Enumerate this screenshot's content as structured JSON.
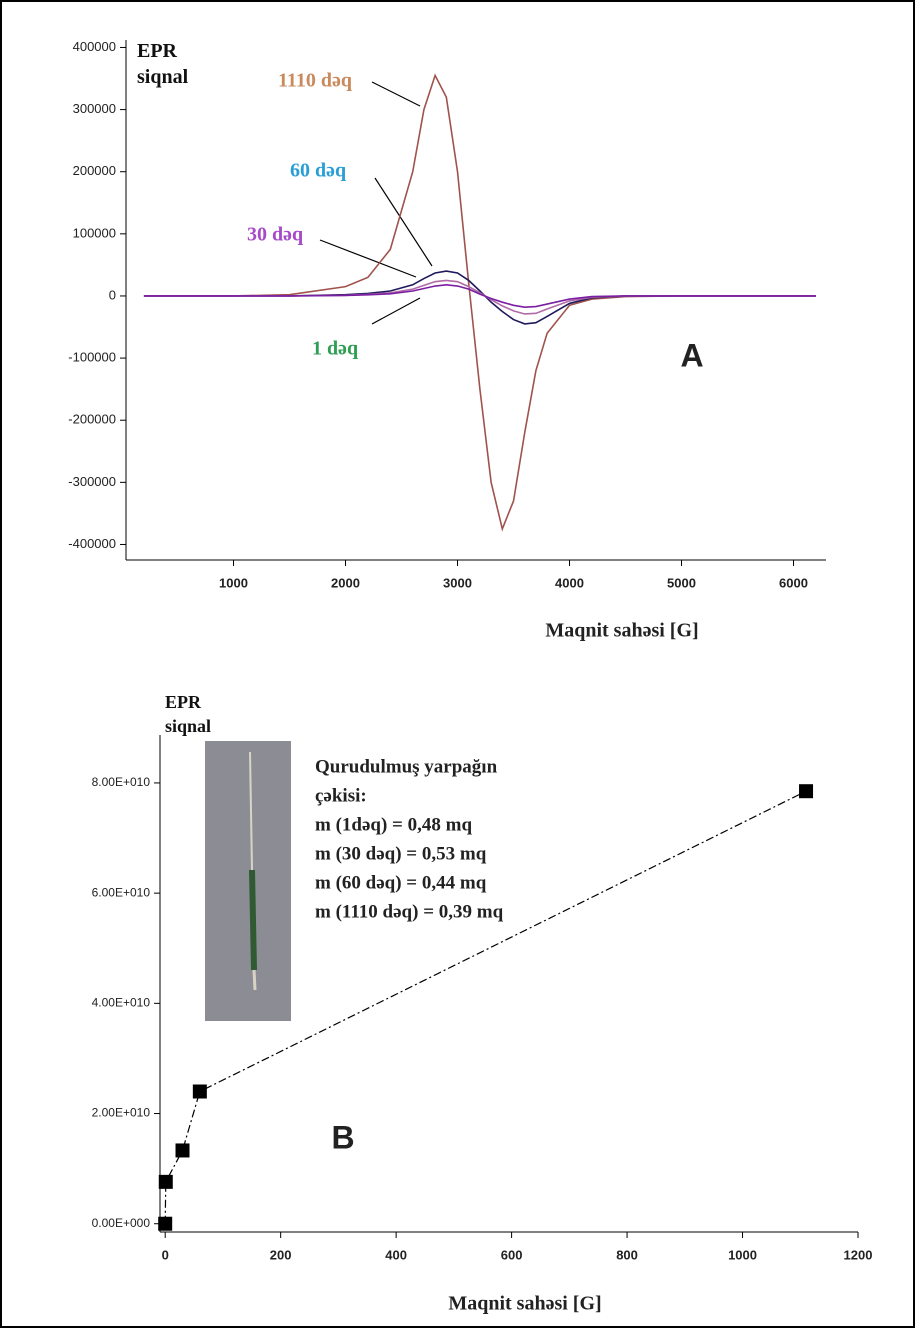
{
  "chart_data": [
    {
      "type": "line",
      "y_label": "EPR siqnal",
      "x_label": "Maqnit sahəsi [G]",
      "annotations": [
        "A"
      ],
      "x": [
        200,
        1000,
        1500,
        2000,
        2200,
        2400,
        2600,
        2700,
        2800,
        2900,
        3000,
        3100,
        3200,
        3300,
        3400,
        3500,
        3600,
        3700,
        3800,
        4000,
        4200,
        4500,
        5000,
        6200
      ],
      "series": [
        {
          "name": "1110 dəq",
          "color": "#a0524d",
          "label_color": "#c98a5e",
          "values": [
            0,
            0,
            2000,
            15000,
            30000,
            75000,
            200000,
            300000,
            355000,
            320000,
            200000,
            20000,
            -150000,
            -300000,
            -375000,
            -330000,
            -220000,
            -120000,
            -60000,
            -15000,
            -5000,
            -1000,
            0,
            0
          ]
        },
        {
          "name": "60 dəq",
          "color": "#1f1a5c",
          "label_color": "#2a9fd6",
          "values": [
            0,
            0,
            0,
            2000,
            4000,
            8000,
            18000,
            28000,
            37000,
            40000,
            37000,
            25000,
            8000,
            -10000,
            -25000,
            -38000,
            -45000,
            -43000,
            -33000,
            -12000,
            -3000,
            0,
            0,
            0
          ]
        },
        {
          "name": "30 dəq",
          "color": "#b06aa8",
          "label_color": "#a64ac9",
          "values": [
            0,
            0,
            0,
            1000,
            2500,
            5000,
            11000,
            17000,
            23000,
            25000,
            23000,
            15000,
            5000,
            -6000,
            -16000,
            -24000,
            -29000,
            -28000,
            -21000,
            -8000,
            -2000,
            0,
            0,
            0
          ]
        },
        {
          "name": "1 dəq",
          "color": "#7b1fa2",
          "label_color": "#2e9e52",
          "values": [
            0,
            0,
            0,
            800,
            1800,
            3500,
            8000,
            12000,
            16000,
            18000,
            16000,
            11000,
            3000,
            -4000,
            -10000,
            -15000,
            -18000,
            -17000,
            -13000,
            -5000,
            -1000,
            0,
            0,
            0
          ]
        }
      ],
      "xlim": [
        40,
        6290
      ],
      "xticks": [
        1000,
        2000,
        3000,
        4000,
        5000,
        6000
      ],
      "ylim": [
        -425000,
        412000
      ],
      "yticks": [
        -400000,
        -300000,
        -200000,
        -100000,
        0,
        100000,
        200000,
        300000,
        400000
      ]
    },
    {
      "type": "scatter",
      "y_label": "EPR siqnal",
      "x_label": "Maqnit sahəsi [G]",
      "annotations": [
        "B"
      ],
      "inset_text": [
        "Qurudulmuş yarpağın",
        "çəkisi:",
        "m (1dəq) = 0,48 mq",
        "m (30 dəq) = 0,53 mq",
        "m (60 dəq) = 0,44 mq",
        "m (1110 dəq) = 0,39 mq"
      ],
      "x": [
        0,
        1,
        30,
        60,
        1110
      ],
      "values": [
        0,
        7600000000,
        13300000000,
        24000000000,
        78500000000
      ],
      "color": "#000000",
      "line_style": "dashdot",
      "xlim": [
        -9,
        1200
      ],
      "xticks": [
        0,
        200,
        400,
        600,
        800,
        1000,
        1200
      ],
      "ylim": [
        -1500000000,
        88700000000
      ],
      "yticks": [
        {
          "value": 0,
          "label": "0.00E+000"
        },
        {
          "value": 20000000000,
          "label": "2.00E+010"
        },
        {
          "value": 40000000000,
          "label": "4.00E+010"
        },
        {
          "value": 60000000000,
          "label": "6.00E+010"
        },
        {
          "value": 80000000000,
          "label": "8.00E+010"
        }
      ]
    }
  ]
}
